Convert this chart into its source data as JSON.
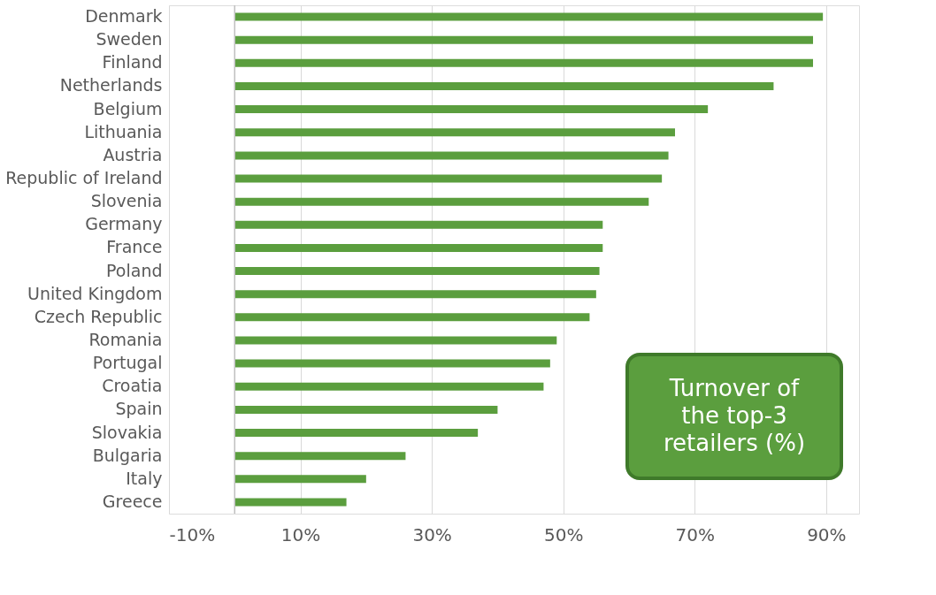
{
  "chart_data": {
    "type": "bar",
    "orientation": "horizontal",
    "categories": [
      "Denmark",
      "Sweden",
      "Finland",
      "Netherlands",
      "Belgium",
      "Lithuania",
      "Austria",
      "Republic of Ireland",
      "Slovenia",
      "Germany",
      "France",
      "Poland",
      "United Kingdom",
      "Czech Republic",
      "Romania",
      "Portugal",
      "Croatia",
      "Spain",
      "Slovakia",
      "Bulgaria",
      "Italy",
      "Greece"
    ],
    "values": [
      89.5,
      88,
      88,
      82,
      72,
      67,
      66,
      65,
      63,
      56,
      56,
      55.5,
      55,
      54,
      49,
      48,
      47,
      40,
      37,
      26,
      20,
      17
    ],
    "color": "#5b9e3e",
    "xlim": [
      -10,
      95
    ],
    "xticks": [
      {
        "value": -10,
        "label": "-10%"
      },
      {
        "value": 10,
        "label": "10%"
      },
      {
        "value": 30,
        "label": "30%"
      },
      {
        "value": 50,
        "label": "50%"
      },
      {
        "value": 70,
        "label": "70%"
      },
      {
        "value": 90,
        "label": "90%"
      }
    ],
    "grid": "x",
    "ref_lines": [
      {
        "axis": "x",
        "value": 0,
        "color": "#bfbfbf"
      }
    ],
    "annotations": [
      "Turnover of the top-3 retailers (%)"
    ]
  }
}
